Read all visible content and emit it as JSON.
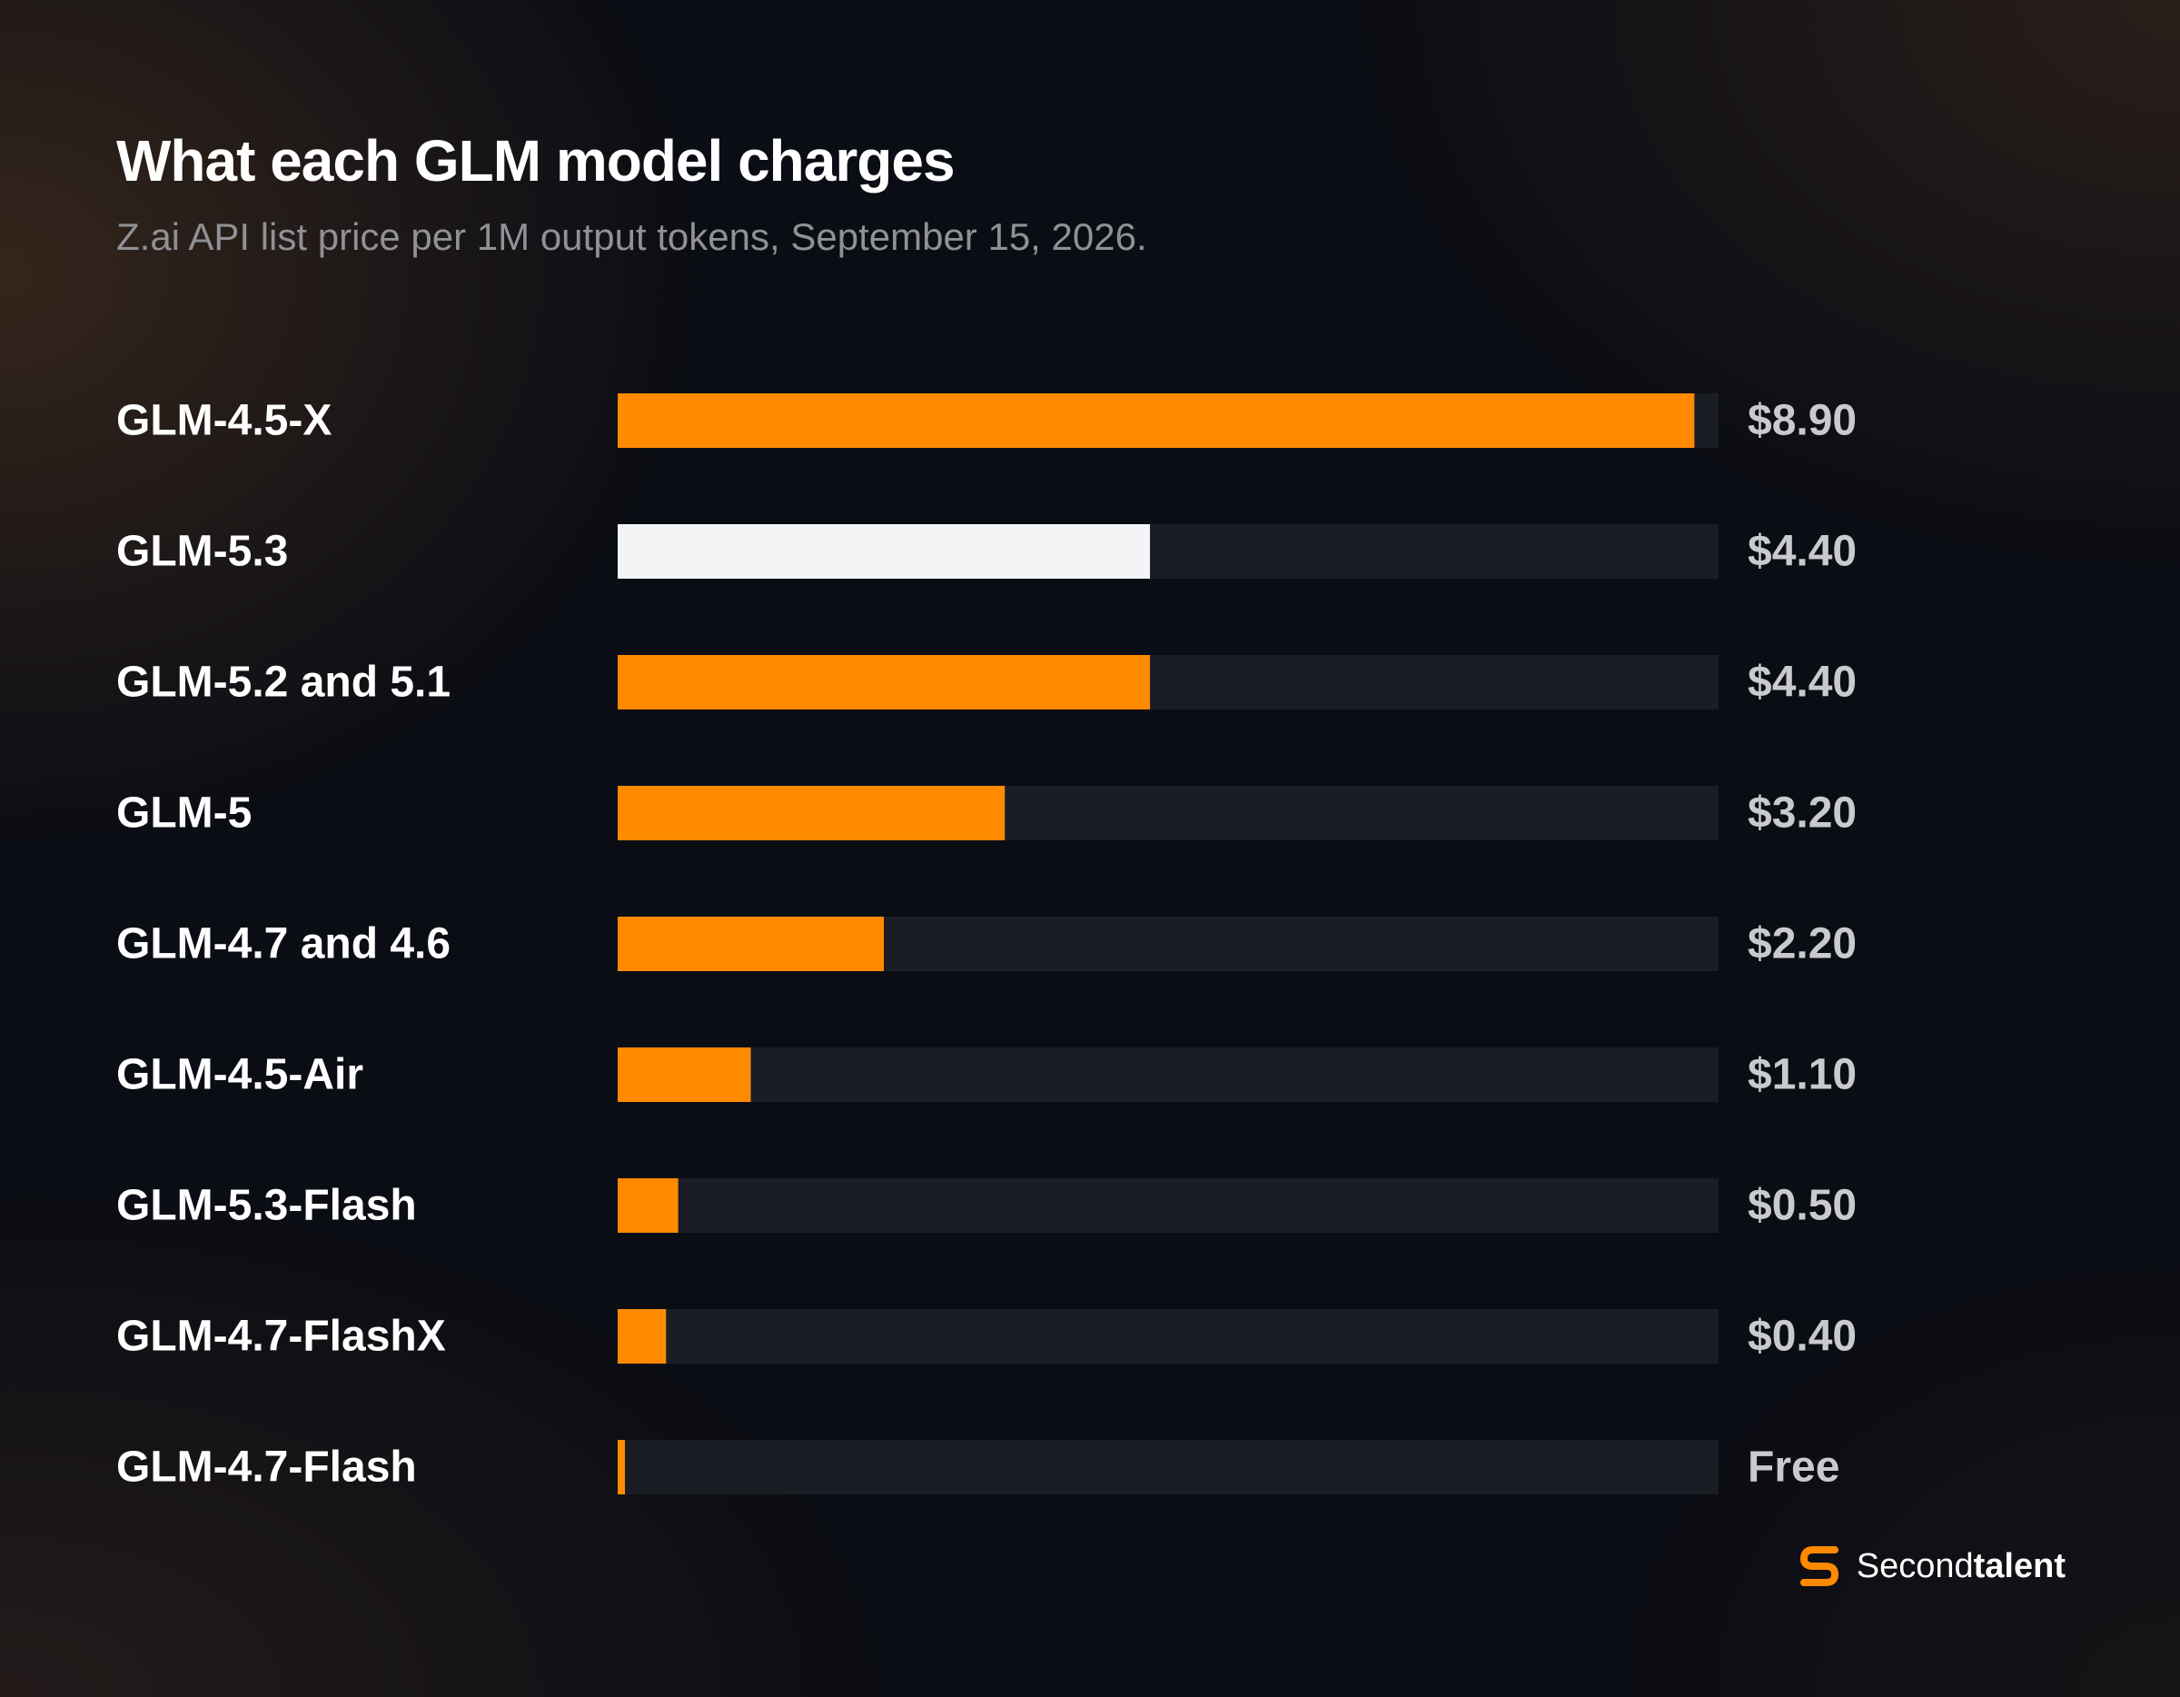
{
  "header": {
    "title": "What each GLM model charges",
    "subtitle": "Z.ai API list price per 1M output tokens, September 15, 2026."
  },
  "chart_data": {
    "type": "bar",
    "orientation": "horizontal",
    "title": "What each GLM model charges",
    "subtitle": "Z.ai API list price per 1M output tokens, September 15, 2026.",
    "unit": "USD per 1M output tokens",
    "xlim": [
      0,
      9.1
    ],
    "grid": false,
    "legend": "none",
    "categories": [
      "GLM-4.5-X",
      "GLM-5.3",
      "GLM-5.2 and 5.1",
      "GLM-5",
      "GLM-4.7 and 4.6",
      "GLM-4.5-Air",
      "GLM-5.3-Flash",
      "GLM-4.7-FlashX",
      "GLM-4.7-Flash"
    ],
    "values": [
      8.9,
      4.4,
      4.4,
      3.2,
      2.2,
      1.1,
      0.5,
      0.4,
      0
    ],
    "value_labels": [
      "$8.90",
      "$4.40",
      "$4.40",
      "$3.20",
      "$2.20",
      "$1.10",
      "$0.50",
      "$0.40",
      "Free"
    ],
    "highlight_index": 1,
    "colors": {
      "bar": "#ff8a00",
      "highlight": "#f3f4f6",
      "track": "#1b1d24"
    }
  },
  "brand": {
    "name_part1": "Second",
    "name_part2": "talent",
    "accent": "#ff8a00"
  }
}
